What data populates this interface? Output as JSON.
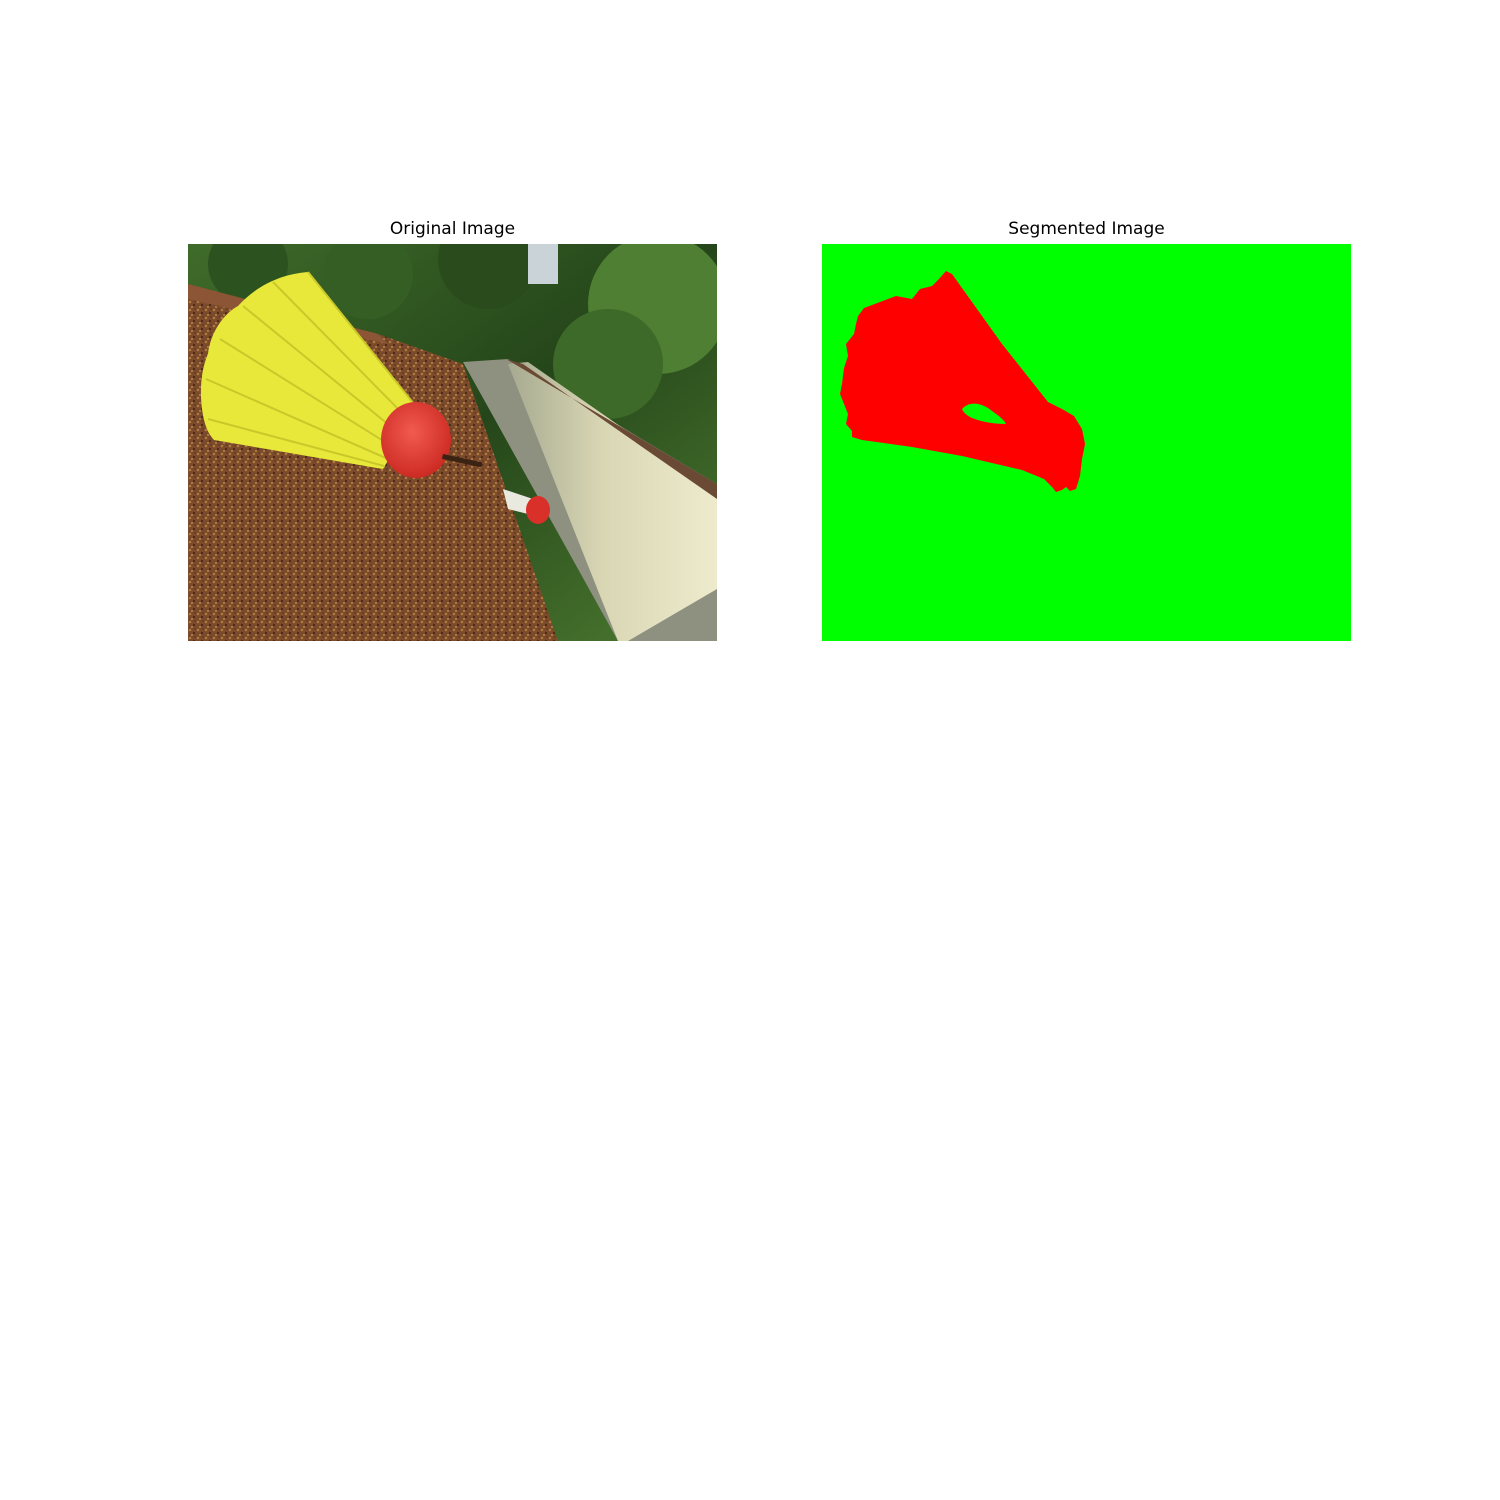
{
  "panels": {
    "original": {
      "title": "Original Image"
    },
    "segmented": {
      "title": "Segmented Image"
    }
  },
  "colors": {
    "background": "#ffffff",
    "segment_background": "#00ff00",
    "segment_foreground": "#ff0000",
    "shingle_brown": "#7a4a2a",
    "foliage_green": "#2f5a1e",
    "shuttle_yellow": "#e8e83a",
    "cork_red": "#e0362f",
    "gutter_cream": "#d9d6b4"
  }
}
